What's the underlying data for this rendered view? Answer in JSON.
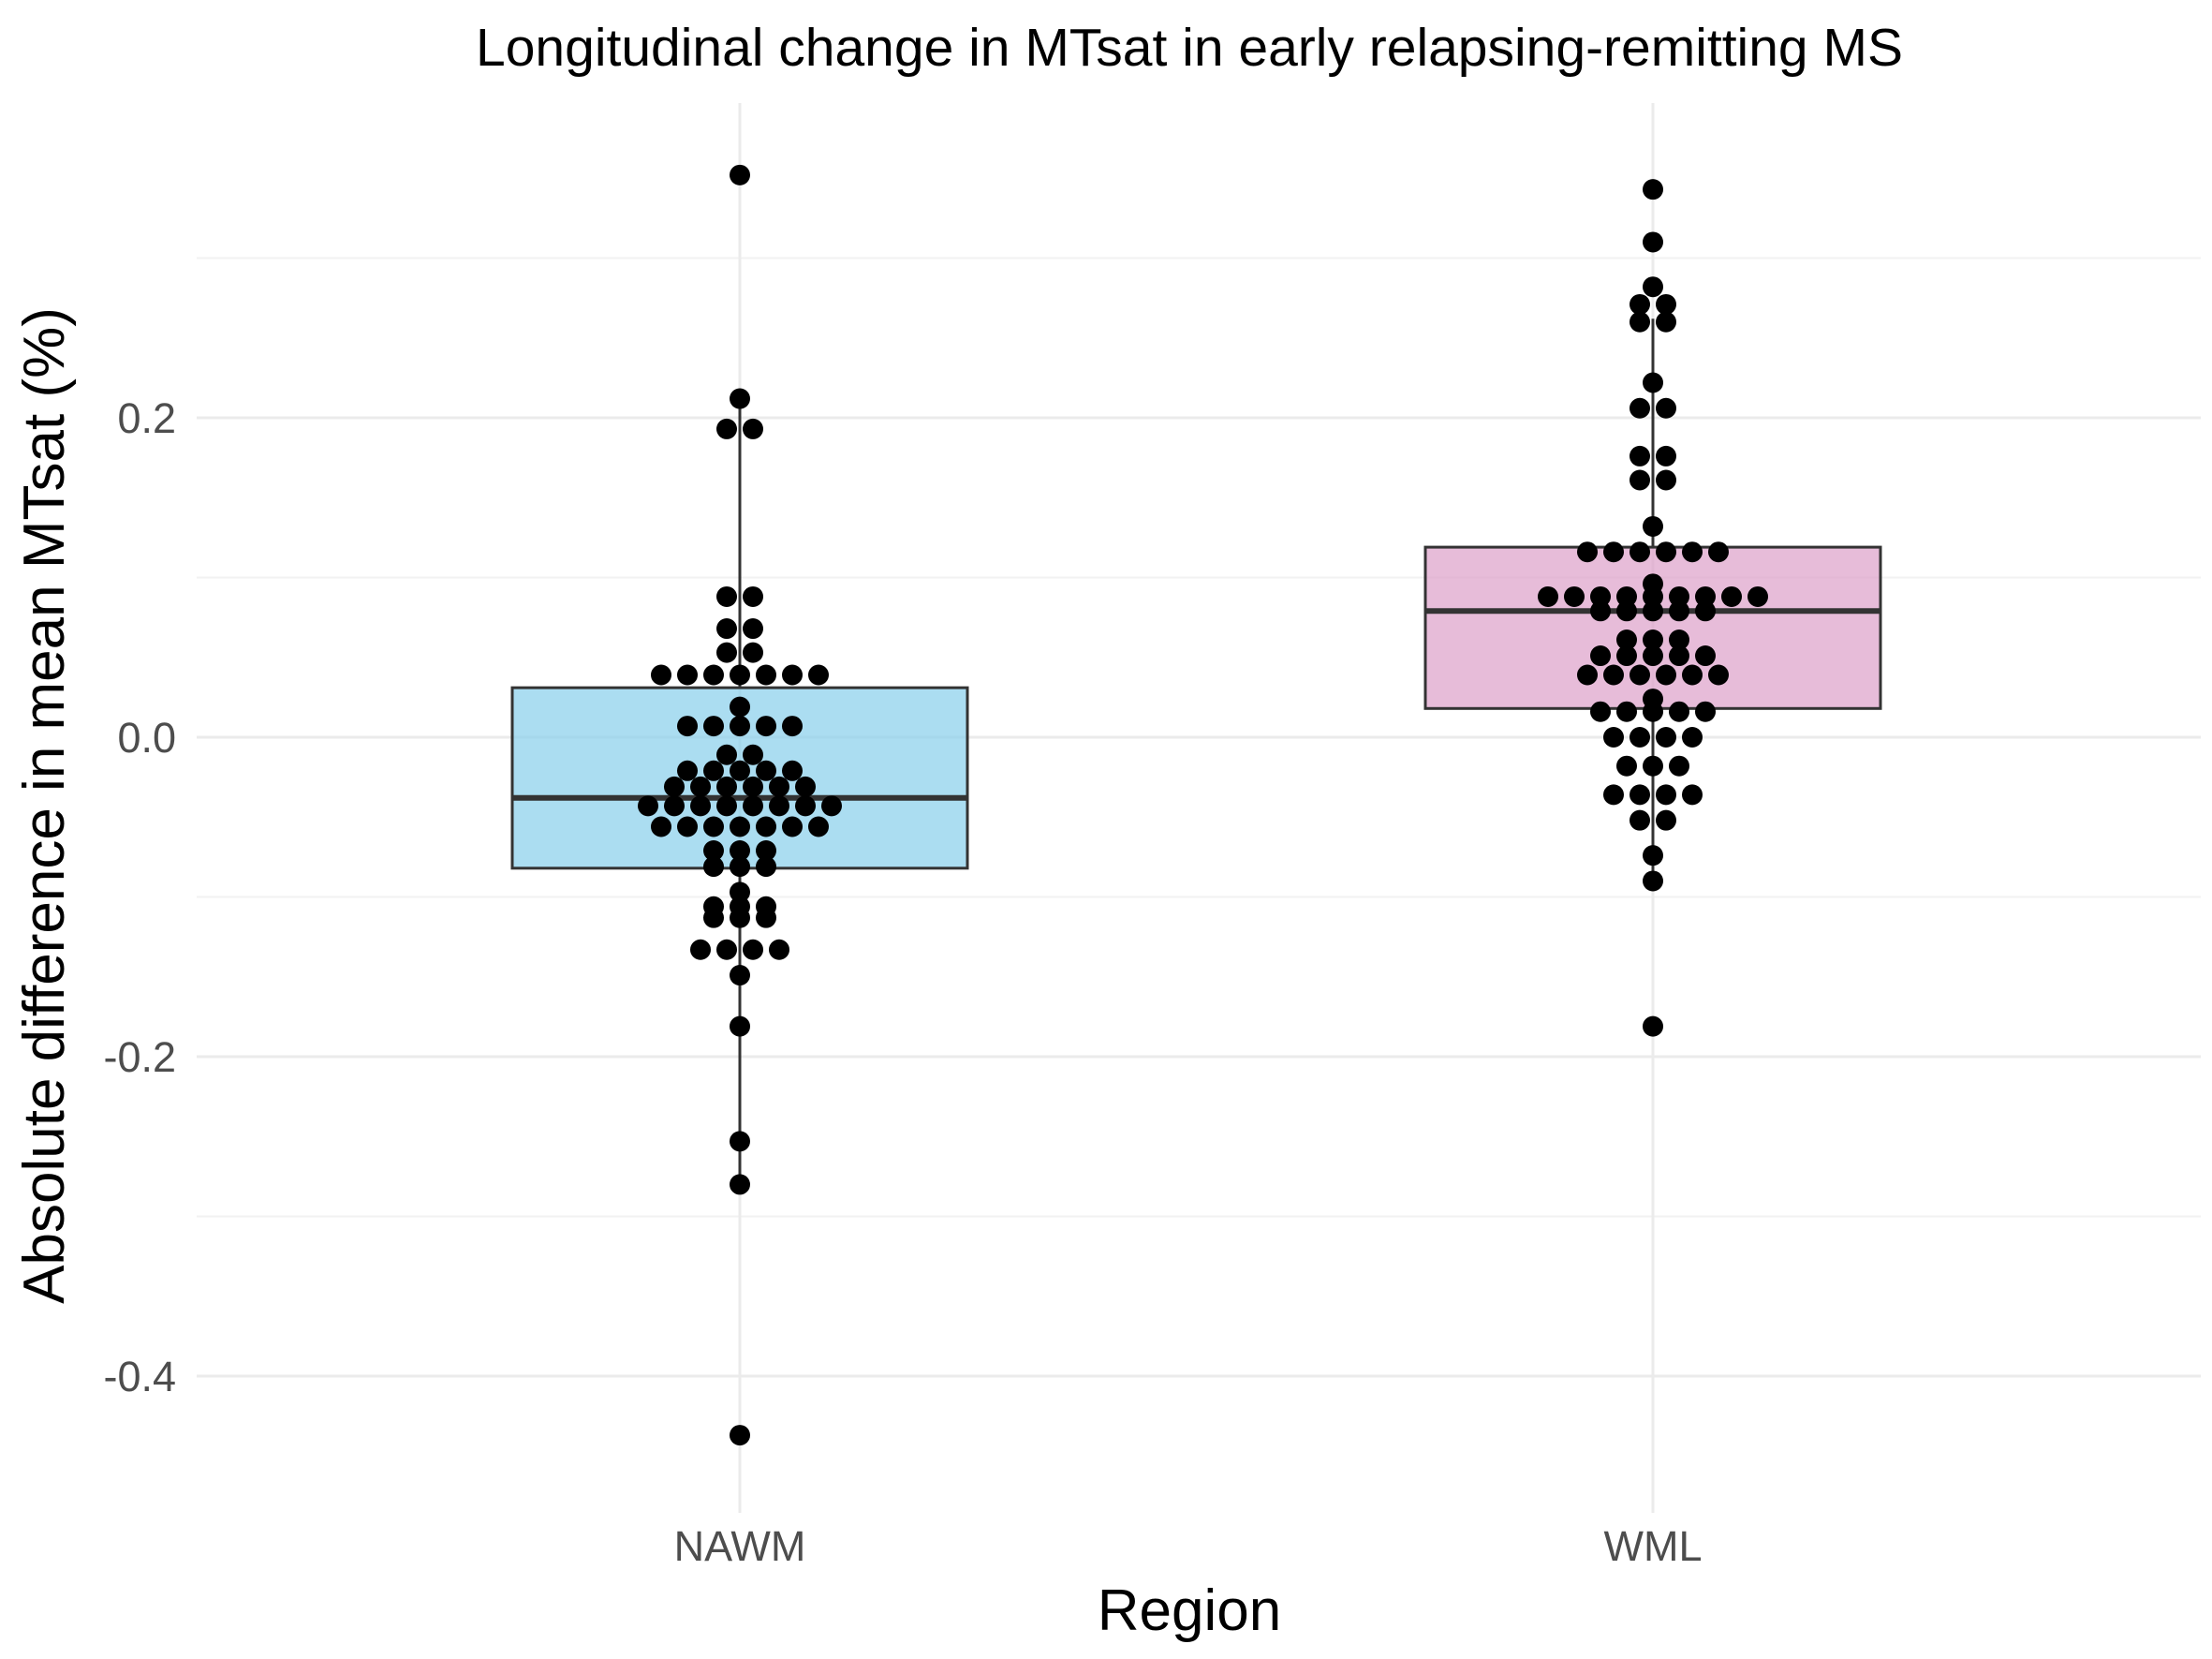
{
  "chart_data": {
    "type": "boxplot",
    "title": "Longitudinal change in MTsat in early relapsing-remitting MS",
    "xlabel": "Region",
    "ylabel": "Absolute difference in mean MTsat (%)",
    "categories": [
      "NAWM",
      "WML"
    ],
    "ylim": [
      -0.485,
      0.4
    ],
    "yticks": [
      -0.4,
      -0.2,
      0.0,
      0.2
    ],
    "ytick_labels": [
      "-0.4",
      "-0.2",
      "0.0",
      "0.2"
    ],
    "grid": true,
    "series": [
      {
        "name": "NAWM",
        "color": "#87CEEB",
        "box": {
          "whisker_low": -0.28,
          "q1": -0.082,
          "median": -0.038,
          "q3": 0.031,
          "whisker_high": 0.212
        },
        "outliers": [
          0.352,
          -0.437
        ],
        "points": [
          0.352,
          0.212,
          0.193,
          0.193,
          0.088,
          0.088,
          0.068,
          0.068,
          0.053,
          0.053,
          0.039,
          0.039,
          0.039,
          0.039,
          0.039,
          0.039,
          0.039,
          0.019,
          0.007,
          0.007,
          0.007,
          0.007,
          0.007,
          -0.011,
          -0.011,
          -0.021,
          -0.021,
          -0.021,
          -0.021,
          -0.021,
          -0.031,
          -0.031,
          -0.031,
          -0.031,
          -0.031,
          -0.031,
          -0.043,
          -0.043,
          -0.043,
          -0.043,
          -0.043,
          -0.043,
          -0.043,
          -0.043,
          -0.056,
          -0.056,
          -0.056,
          -0.056,
          -0.056,
          -0.056,
          -0.056,
          -0.071,
          -0.071,
          -0.071,
          -0.081,
          -0.081,
          -0.081,
          -0.097,
          -0.106,
          -0.106,
          -0.106,
          -0.113,
          -0.113,
          -0.113,
          -0.133,
          -0.133,
          -0.133,
          -0.133,
          -0.149,
          -0.181,
          -0.253,
          -0.28,
          -0.437
        ]
      },
      {
        "name": "WML",
        "color": "#DDA0C9",
        "box": {
          "whisker_low": -0.09,
          "q1": 0.018,
          "median": 0.079,
          "q3": 0.119,
          "whisker_high": 0.262
        },
        "outliers": [
          0.343,
          0.31,
          0.282,
          0.271,
          0.271,
          -0.181
        ],
        "points": [
          0.343,
          0.31,
          0.282,
          0.271,
          0.271,
          0.26,
          0.26,
          0.222,
          0.206,
          0.206,
          0.176,
          0.176,
          0.161,
          0.161,
          0.132,
          0.116,
          0.116,
          0.116,
          0.116,
          0.116,
          0.116,
          0.096,
          0.088,
          0.088,
          0.088,
          0.088,
          0.088,
          0.088,
          0.088,
          0.088,
          0.088,
          0.079,
          0.079,
          0.079,
          0.079,
          0.079,
          0.061,
          0.061,
          0.061,
          0.051,
          0.051,
          0.051,
          0.051,
          0.051,
          0.039,
          0.039,
          0.039,
          0.039,
          0.039,
          0.039,
          0.024,
          0.016,
          0.016,
          0.016,
          0.016,
          0.016,
          0.0,
          0.0,
          0.0,
          0.0,
          -0.018,
          -0.018,
          -0.018,
          -0.036,
          -0.036,
          -0.036,
          -0.036,
          -0.052,
          -0.052,
          -0.074,
          -0.09,
          -0.181
        ]
      }
    ]
  }
}
